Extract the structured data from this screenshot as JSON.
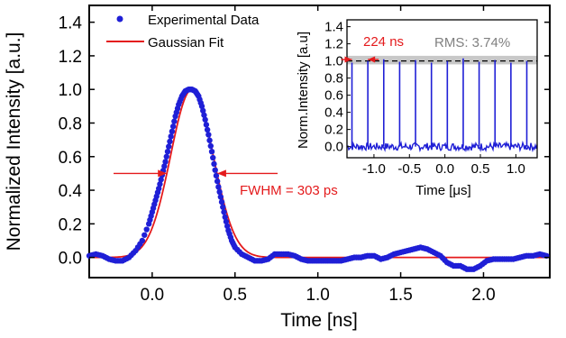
{
  "colors": {
    "experimental": "#1f1fd6",
    "fit": "#e41a1c",
    "rms_band": "#c8c8c8",
    "rms_text": "#808080",
    "axes": "#000000"
  },
  "chart_data": [
    {
      "type": "scatter",
      "role": "main",
      "xlabel": "Time [ns]",
      "ylabel": "Normalized Intensity [a.u.]",
      "xlim": [
        -0.38,
        2.4
      ],
      "ylim": [
        -0.12,
        1.5
      ],
      "xticks": [
        0.0,
        0.5,
        1.0,
        1.5,
        2.0
      ],
      "xtick_labels": [
        "0.0",
        "0.5",
        "1.0",
        "1.5",
        "2.0"
      ],
      "yticks": [
        0.0,
        0.2,
        0.4,
        0.6,
        0.8,
        1.0,
        1.2,
        1.4
      ],
      "ytick_labels": [
        "0.0",
        "0.2",
        "0.4",
        "0.6",
        "0.8",
        "1.0",
        "1.2",
        "1.4"
      ],
      "legend": {
        "position": "top-left",
        "entries": [
          "Experimental Data",
          "Gaussian Fit"
        ]
      },
      "series": [
        {
          "name": "Experimental Data",
          "kind": "points",
          "x": [
            -0.38,
            -0.34,
            -0.3,
            -0.26,
            -0.22,
            -0.18,
            -0.14,
            -0.1,
            -0.06,
            -0.02,
            0.0,
            0.02,
            0.04,
            0.06,
            0.08,
            0.1,
            0.12,
            0.14,
            0.16,
            0.18,
            0.2,
            0.22,
            0.24,
            0.26,
            0.28,
            0.3,
            0.32,
            0.34,
            0.36,
            0.38,
            0.4,
            0.42,
            0.44,
            0.46,
            0.48,
            0.5,
            0.54,
            0.58,
            0.62,
            0.66,
            0.7,
            0.74,
            0.78,
            0.82,
            0.86,
            0.9,
            0.94,
            0.98,
            1.02,
            1.06,
            1.1,
            1.14,
            1.18,
            1.22,
            1.26,
            1.3,
            1.34,
            1.38,
            1.42,
            1.46,
            1.5,
            1.54,
            1.58,
            1.62,
            1.66,
            1.7,
            1.74,
            1.78,
            1.82,
            1.86,
            1.9,
            1.94,
            1.98,
            2.02,
            2.06,
            2.1,
            2.14,
            2.18,
            2.22,
            2.26,
            2.3,
            2.34,
            2.38
          ],
          "y": [
            0.01,
            0.02,
            0.01,
            -0.01,
            -0.02,
            -0.02,
            0.0,
            0.04,
            0.1,
            0.2,
            0.27,
            0.34,
            0.41,
            0.49,
            0.57,
            0.66,
            0.75,
            0.84,
            0.91,
            0.96,
            0.99,
            1.0,
            1.0,
            0.99,
            0.96,
            0.9,
            0.82,
            0.73,
            0.63,
            0.52,
            0.42,
            0.33,
            0.24,
            0.16,
            0.1,
            0.06,
            0.02,
            0.0,
            -0.02,
            -0.02,
            -0.01,
            0.02,
            0.02,
            0.02,
            0.01,
            -0.01,
            -0.02,
            -0.02,
            -0.02,
            -0.02,
            -0.02,
            -0.02,
            -0.01,
            0.0,
            0.0,
            0.01,
            0.01,
            -0.01,
            0.0,
            0.02,
            0.03,
            0.04,
            0.05,
            0.06,
            0.05,
            0.03,
            0.01,
            -0.03,
            -0.05,
            -0.05,
            -0.07,
            -0.07,
            -0.05,
            -0.02,
            -0.01,
            -0.01,
            -0.01,
            -0.01,
            0.0,
            0.01,
            0.01,
            0.02,
            0.01
          ]
        },
        {
          "name": "Gaussian Fit",
          "kind": "line",
          "model": "gaussian",
          "center": 0.24,
          "fwhm": 0.303,
          "amplitude": 1.0,
          "baseline": 0.0
        }
      ],
      "annotations": [
        {
          "text": "FWHM = 303 ps",
          "x_left": 0.089,
          "x_right": 0.392,
          "y": 0.5
        }
      ]
    },
    {
      "type": "line",
      "role": "inset",
      "xlabel": "Time [μs]",
      "ylabel": "Norm.Intensity [a.u]",
      "xlim": [
        -1.38,
        1.3
      ],
      "ylim": [
        -0.13,
        1.48
      ],
      "xticks": [
        -1.0,
        -0.5,
        0.0,
        0.5,
        1.0
      ],
      "xtick_labels": [
        "-1.0",
        "-0.5",
        "0.0",
        "0.5",
        "1.0"
      ],
      "yticks": [
        0.0,
        0.2,
        0.4,
        0.6,
        0.8,
        1.0,
        1.2,
        1.4
      ],
      "ytick_labels": [
        "0.0",
        "0.2",
        "0.4",
        "0.6",
        "0.8",
        "1.0",
        "1.2",
        "1.4"
      ],
      "period_label": "224 ns",
      "rms_label": "RMS: 3.74%",
      "rms_band": [
        0.96,
        1.06
      ],
      "reference_level": 1.0,
      "series": [
        {
          "name": "Pulse train",
          "pulse_x": [
            -1.31,
            -1.086,
            -0.862,
            -0.638,
            -0.414,
            -0.19,
            0.034,
            0.258,
            0.482,
            0.706,
            0.93,
            1.154
          ],
          "pulse_y": [
            0.98,
            1.0,
            1.02,
            0.99,
            1.01,
            0.98,
            1.0,
            1.03,
            0.99,
            1.01,
            0.98,
            1.0
          ],
          "noise_baseline": 0.0
        }
      ]
    }
  ]
}
